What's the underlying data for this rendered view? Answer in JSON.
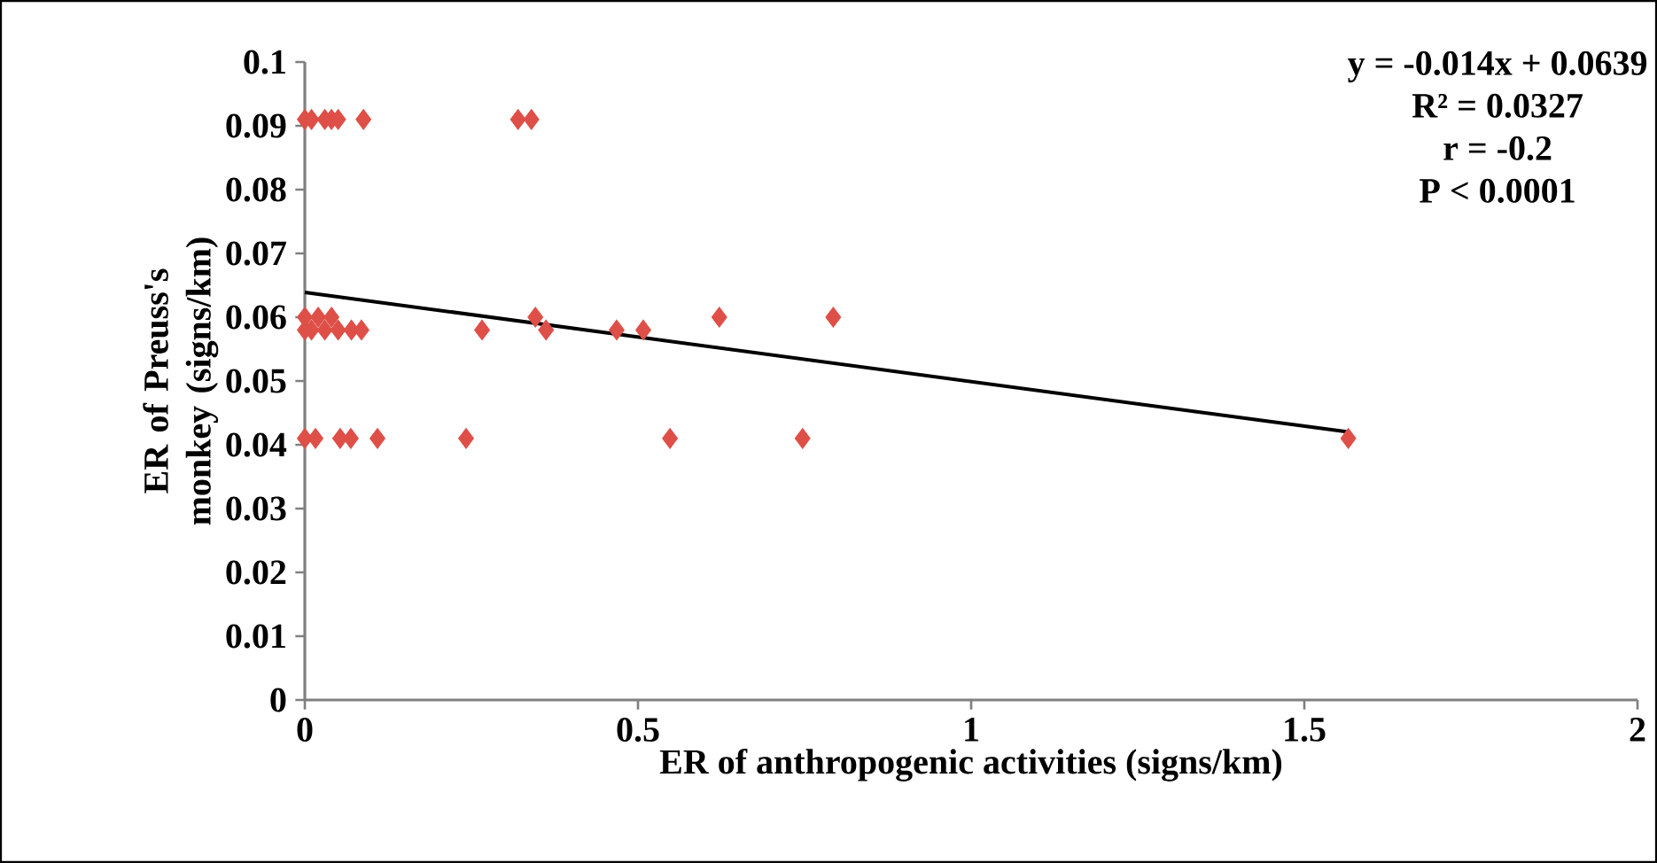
{
  "chart_data": {
    "type": "scatter",
    "xlabel": "ER of anthropogenic activities (signs/km)",
    "ylabel": "ER of Preuss's monkey (signs/km)",
    "xlim": [
      0,
      2
    ],
    "ylim": [
      0,
      0.1
    ],
    "xticks": [
      0,
      0.5,
      1,
      1.5,
      2
    ],
    "yticks": [
      0,
      0.01,
      0.02,
      0.03,
      0.04,
      0.05,
      0.06,
      0.07,
      0.08,
      0.09,
      0.1
    ],
    "marker": "diamond",
    "annotations": [
      "y = -0.014x + 0.0639",
      "R² = 0.0327",
      "r = -0.2",
      "P < 0.0001"
    ],
    "series": [
      {
        "color": "#de4f48",
        "x": [
          0,
          0.01,
          0.03,
          0.04,
          0.05,
          0.088,
          0.32,
          0.34,
          0,
          0.02,
          0.04,
          0.346,
          0.622,
          0.793,
          0,
          0.01,
          0.03,
          0.05,
          0.07,
          0.085,
          0.266,
          0.362,
          0.468,
          0.508,
          0,
          0.016,
          0.053,
          0.069,
          0.109,
          0.242,
          0.548,
          0.747,
          1.566
        ],
        "values": [
          0.091,
          0.091,
          0.091,
          0.091,
          0.091,
          0.091,
          0.091,
          0.091,
          0.06,
          0.06,
          0.06,
          0.06,
          0.06,
          0.06,
          0.058,
          0.058,
          0.058,
          0.058,
          0.058,
          0.058,
          0.058,
          0.058,
          0.058,
          0.058,
          0.041,
          0.041,
          0.041,
          0.041,
          0.041,
          0.041,
          0.041,
          0.041,
          0.041
        ]
      },
      {
        "type": "line",
        "marker": "none",
        "color": "#000000",
        "x": [
          0,
          1.566
        ],
        "values": [
          0.0639,
          0.042
        ]
      }
    ]
  }
}
